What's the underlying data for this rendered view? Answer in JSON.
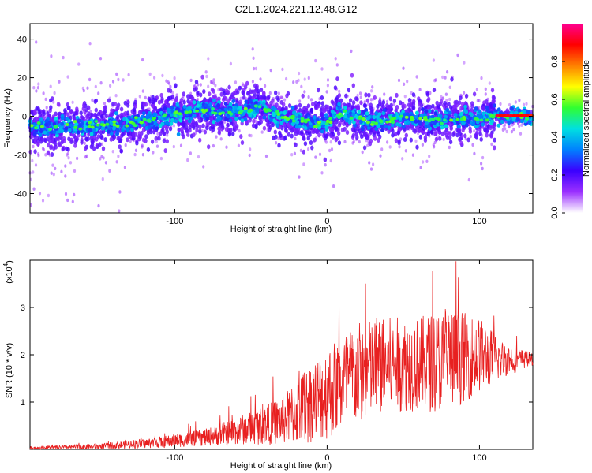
{
  "title": "C2E1.2024.221.12.48.G12",
  "chart_data": [
    {
      "type": "heatmap",
      "xlabel": "Height of straight line (km)",
      "ylabel": "Frequency (Hz)",
      "xlim": [
        -195,
        135
      ],
      "ylim": [
        -50,
        48
      ],
      "x_ticks": [
        -100,
        0,
        100
      ],
      "y_ticks": [
        -40,
        -20,
        0,
        20,
        40
      ],
      "colorbar": {
        "label": "Normalized spectral amplitude",
        "range": [
          0,
          1
        ],
        "ticks": [
          0.0,
          0.2,
          0.4,
          0.6,
          0.8
        ],
        "tick_labels": [
          "0.0",
          "0.2",
          "0.4",
          "0.6",
          "0.8"
        ],
        "colors": [
          "#ffffff",
          "#9b30ff",
          "#3a00ff",
          "#0080ff",
          "#00e0e0",
          "#30ff30",
          "#ffff00",
          "#ff8000",
          "#ff0000",
          "#ff0090"
        ]
      },
      "ridge": [
        {
          "x": -195,
          "y": -6
        },
        {
          "x": -160,
          "y": -5
        },
        {
          "x": -130,
          "y": -4
        },
        {
          "x": -100,
          "y": 1
        },
        {
          "x": -80,
          "y": 3
        },
        {
          "x": -60,
          "y": 2
        },
        {
          "x": -45,
          "y": 5
        },
        {
          "x": -30,
          "y": 0
        },
        {
          "x": -15,
          "y": -3
        },
        {
          "x": 0,
          "y": -4
        },
        {
          "x": 10,
          "y": 2
        },
        {
          "x": 30,
          "y": -3
        },
        {
          "x": 50,
          "y": -1
        },
        {
          "x": 80,
          "y": -2
        },
        {
          "x": 110,
          "y": 0
        },
        {
          "x": 135,
          "y": 0
        }
      ]
    },
    {
      "type": "line",
      "xlabel": "Height of straight line (km)",
      "ylabel": "SNR (10 * v/v)",
      "y_multiplier": "(x10",
      "y_multiplier_exp": "4",
      "xlim": [
        -195,
        135
      ],
      "ylim": [
        0,
        4
      ],
      "x_ticks": [
        -100,
        0,
        100
      ],
      "y_ticks": [
        1,
        2,
        3
      ],
      "color": "#e82020",
      "envelope": [
        {
          "x": -195,
          "mean": 0.03,
          "spread": 0.03
        },
        {
          "x": -150,
          "mean": 0.06,
          "spread": 0.06
        },
        {
          "x": -110,
          "mean": 0.15,
          "spread": 0.12
        },
        {
          "x": -80,
          "mean": 0.25,
          "spread": 0.18
        },
        {
          "x": -50,
          "mean": 0.45,
          "spread": 0.35
        },
        {
          "x": -30,
          "mean": 0.6,
          "spread": 0.5
        },
        {
          "x": -15,
          "mean": 0.9,
          "spread": 0.8
        },
        {
          "x": 0,
          "mean": 1.2,
          "spread": 1.0
        },
        {
          "x": 20,
          "mean": 1.6,
          "spread": 1.1
        },
        {
          "x": 40,
          "mean": 1.8,
          "spread": 1.0
        },
        {
          "x": 60,
          "mean": 1.8,
          "spread": 1.0
        },
        {
          "x": 80,
          "mean": 1.9,
          "spread": 1.1
        },
        {
          "x": 100,
          "mean": 2.0,
          "spread": 0.8
        },
        {
          "x": 115,
          "mean": 1.9,
          "spread": 0.4
        },
        {
          "x": 135,
          "mean": 1.9,
          "spread": 0.12
        }
      ]
    }
  ]
}
